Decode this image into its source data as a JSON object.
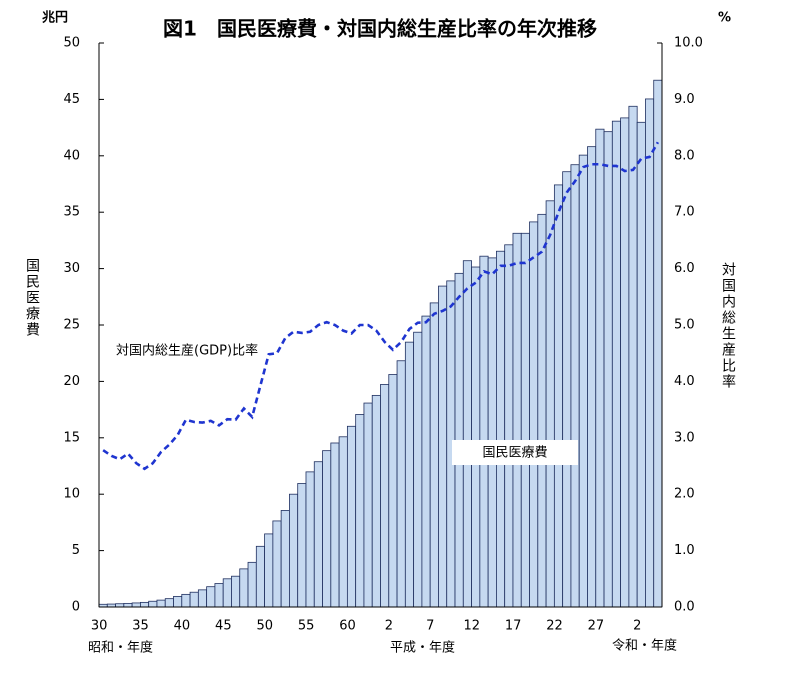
{
  "chart_data": {
    "type": "bar_line",
    "title": "図1　国民医療費・対国内総生産比率の年次推移",
    "y_unit": "兆円",
    "y2_unit": "%",
    "ylabel": "国民医療費",
    "y2label": "対国内総生産比率",
    "era_labels": [
      "昭和・年度",
      "平成・年度",
      "令和・年度"
    ],
    "categories": [
      "30",
      null,
      null,
      null,
      null,
      "35",
      null,
      null,
      null,
      null,
      "40",
      null,
      null,
      null,
      null,
      "45",
      null,
      null,
      null,
      null,
      "50",
      null,
      null,
      null,
      null,
      "55",
      null,
      null,
      null,
      null,
      "60",
      null,
      null,
      null,
      null,
      "2",
      null,
      null,
      null,
      null,
      "7",
      null,
      null,
      null,
      null,
      "12",
      null,
      null,
      null,
      null,
      "17",
      null,
      null,
      null,
      null,
      "22",
      null,
      null,
      null,
      null,
      "27",
      null,
      null,
      null,
      null,
      "2",
      null,
      null
    ],
    "series": [
      {
        "name": "国民医療費",
        "type": "bar",
        "color": "#c6d9f0",
        "edgecolor": "#1f2f5f",
        "values": [
          0.24,
          0.26,
          0.29,
          0.32,
          0.36,
          0.41,
          0.51,
          0.61,
          0.74,
          0.94,
          1.12,
          1.31,
          1.52,
          1.8,
          2.08,
          2.5,
          2.73,
          3.38,
          3.96,
          5.38,
          6.48,
          7.63,
          8.56,
          10.0,
          10.95,
          11.98,
          12.88,
          13.86,
          14.54,
          15.09,
          16.02,
          17.07,
          18.08,
          18.76,
          19.73,
          20.61,
          21.83,
          23.48,
          24.36,
          25.79,
          26.96,
          28.45,
          28.91,
          29.58,
          30.7,
          30.14,
          31.1,
          30.95,
          31.54,
          32.11,
          33.13,
          33.13,
          34.14,
          34.81,
          36.01,
          37.42,
          38.59,
          39.21,
          40.06,
          40.81,
          42.36,
          42.14,
          43.07,
          43.36,
          44.39,
          42.97,
          45.04,
          46.7
        ]
      },
      {
        "name": "対国内総生産(GDP)比率",
        "type": "line",
        "axis": "y2",
        "color": "#1f35d0",
        "linestyle": "dashed",
        "values": [
          2.78,
          2.68,
          2.62,
          2.72,
          2.55,
          2.45,
          2.55,
          2.75,
          2.88,
          3.05,
          3.32,
          3.28,
          3.27,
          3.3,
          3.22,
          3.33,
          3.32,
          3.52,
          3.37,
          3.93,
          4.48,
          4.5,
          4.77,
          4.88,
          4.86,
          4.88,
          5.0,
          5.05,
          5.0,
          4.9,
          4.85,
          5.0,
          5.0,
          4.9,
          4.7,
          4.56,
          4.7,
          4.93,
          5.04,
          5.05,
          5.2,
          5.25,
          5.33,
          5.5,
          5.65,
          5.75,
          5.95,
          5.9,
          6.05,
          6.05,
          6.1,
          6.1,
          6.2,
          6.3,
          6.6,
          7.0,
          7.35,
          7.55,
          7.8,
          7.85,
          7.85,
          7.82,
          7.82,
          7.73,
          7.75,
          7.95,
          7.98,
          8.24
        ]
      }
    ],
    "ylim": [
      0,
      50
    ],
    "yticks": [
      0,
      5,
      10,
      15,
      20,
      25,
      30,
      35,
      40,
      45,
      50
    ],
    "y2lim": [
      0,
      10
    ],
    "y2ticks": [
      {
        "value": 0,
        "label": "0.0"
      },
      {
        "value": 1,
        "label": "1.0"
      },
      {
        "value": 2,
        "label": "2.0"
      },
      {
        "value": 3,
        "label": "3.0"
      },
      {
        "value": 4,
        "label": "4.0"
      },
      {
        "value": 5,
        "label": "5.0"
      },
      {
        "value": 6,
        "label": "6.0"
      },
      {
        "value": 7,
        "label": "7.0"
      },
      {
        "value": 8,
        "label": "8.0"
      },
      {
        "value": 9,
        "label": "9.0"
      },
      {
        "value": 10,
        "label": "10.0"
      }
    ]
  }
}
